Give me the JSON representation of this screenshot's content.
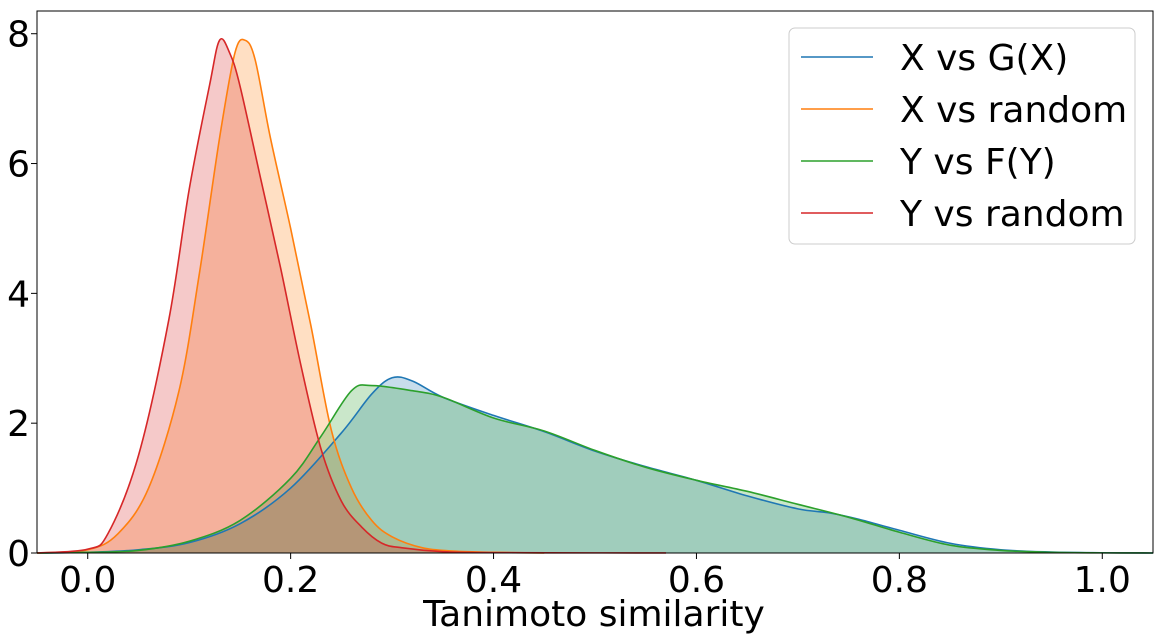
{
  "chart_data": {
    "type": "area",
    "title": "",
    "xlabel": "Tanimoto similarity",
    "ylabel": "",
    "xlim": [
      -0.05,
      1.05
    ],
    "ylim": [
      0,
      8.35
    ],
    "grid": false,
    "legend_position": "top-right",
    "x_ticks": [
      {
        "value": 0.0,
        "label": "0.0"
      },
      {
        "value": 0.2,
        "label": "0.2"
      },
      {
        "value": 0.4,
        "label": "0.4"
      },
      {
        "value": 0.6,
        "label": "0.6"
      },
      {
        "value": 0.8,
        "label": "0.8"
      },
      {
        "value": 1.0,
        "label": "1.0"
      }
    ],
    "y_ticks": [
      {
        "value": 0,
        "label": "0"
      },
      {
        "value": 2,
        "label": "2"
      },
      {
        "value": 4,
        "label": "4"
      },
      {
        "value": 6,
        "label": "6"
      },
      {
        "value": 8,
        "label": "8"
      }
    ],
    "series": [
      {
        "name": "X vs G(X)",
        "color": "#1f77b4",
        "points": [
          [
            -0.05,
            0
          ],
          [
            0.0,
            0.01
          ],
          [
            0.05,
            0.05
          ],
          [
            0.1,
            0.16
          ],
          [
            0.15,
            0.45
          ],
          [
            0.2,
            1.0
          ],
          [
            0.25,
            1.85
          ],
          [
            0.28,
            2.45
          ],
          [
            0.3,
            2.7
          ],
          [
            0.32,
            2.65
          ],
          [
            0.35,
            2.4
          ],
          [
            0.4,
            2.12
          ],
          [
            0.45,
            1.87
          ],
          [
            0.5,
            1.57
          ],
          [
            0.55,
            1.33
          ],
          [
            0.6,
            1.12
          ],
          [
            0.65,
            0.88
          ],
          [
            0.7,
            0.68
          ],
          [
            0.73,
            0.62
          ],
          [
            0.76,
            0.52
          ],
          [
            0.8,
            0.35
          ],
          [
            0.85,
            0.15
          ],
          [
            0.9,
            0.05
          ],
          [
            0.95,
            0.015
          ],
          [
            1.0,
            0.004
          ],
          [
            1.05,
            0
          ]
        ]
      },
      {
        "name": "X vs random",
        "color": "#ff7f0e",
        "points": [
          [
            -0.05,
            0
          ],
          [
            0.0,
            0.05
          ],
          [
            0.03,
            0.3
          ],
          [
            0.06,
            1.0
          ],
          [
            0.09,
            2.5
          ],
          [
            0.11,
            4.3
          ],
          [
            0.13,
            6.4
          ],
          [
            0.145,
            7.7
          ],
          [
            0.155,
            7.9
          ],
          [
            0.165,
            7.6
          ],
          [
            0.18,
            6.4
          ],
          [
            0.2,
            5.0
          ],
          [
            0.22,
            3.5
          ],
          [
            0.24,
            1.9
          ],
          [
            0.26,
            1.0
          ],
          [
            0.28,
            0.5
          ],
          [
            0.3,
            0.25
          ],
          [
            0.33,
            0.08
          ],
          [
            0.36,
            0.03
          ],
          [
            0.4,
            0.01
          ],
          [
            0.45,
            0
          ]
        ]
      },
      {
        "name": "Y vs F(Y)",
        "color": "#2ca02c",
        "points": [
          [
            -0.05,
            0
          ],
          [
            0.0,
            0.01
          ],
          [
            0.05,
            0.04
          ],
          [
            0.1,
            0.18
          ],
          [
            0.15,
            0.5
          ],
          [
            0.2,
            1.15
          ],
          [
            0.23,
            1.8
          ],
          [
            0.26,
            2.5
          ],
          [
            0.28,
            2.58
          ],
          [
            0.32,
            2.5
          ],
          [
            0.35,
            2.4
          ],
          [
            0.4,
            2.08
          ],
          [
            0.45,
            1.88
          ],
          [
            0.5,
            1.58
          ],
          [
            0.55,
            1.32
          ],
          [
            0.6,
            1.12
          ],
          [
            0.65,
            0.95
          ],
          [
            0.7,
            0.75
          ],
          [
            0.75,
            0.55
          ],
          [
            0.8,
            0.32
          ],
          [
            0.85,
            0.12
          ],
          [
            0.9,
            0.04
          ],
          [
            0.95,
            0.01
          ],
          [
            1.0,
            0.002
          ],
          [
            1.05,
            0
          ]
        ]
      },
      {
        "name": "Y vs random",
        "color": "#d62728",
        "points": [
          [
            -0.05,
            0
          ],
          [
            0.0,
            0.06
          ],
          [
            0.02,
            0.3
          ],
          [
            0.05,
            1.5
          ],
          [
            0.08,
            3.6
          ],
          [
            0.1,
            5.6
          ],
          [
            0.12,
            7.2
          ],
          [
            0.13,
            7.9
          ],
          [
            0.14,
            7.7
          ],
          [
            0.15,
            7.2
          ],
          [
            0.17,
            5.8
          ],
          [
            0.19,
            4.4
          ],
          [
            0.21,
            2.9
          ],
          [
            0.23,
            1.6
          ],
          [
            0.25,
            0.8
          ],
          [
            0.27,
            0.4
          ],
          [
            0.29,
            0.15
          ],
          [
            0.31,
            0.08
          ],
          [
            0.35,
            0.02
          ],
          [
            0.4,
            0.005
          ],
          [
            0.5,
            0.002
          ],
          [
            0.57,
            0.001
          ]
        ]
      }
    ]
  }
}
